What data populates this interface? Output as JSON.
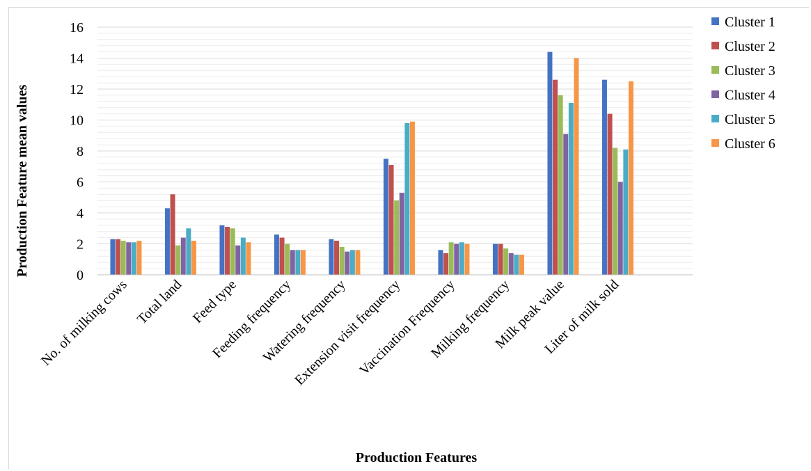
{
  "chart_data": {
    "type": "bar",
    "title": "",
    "xlabel": "Production Features",
    "ylabel": "Production Feature mean values",
    "ylim": [
      0,
      16
    ],
    "yticks": [
      0,
      2,
      4,
      6,
      8,
      10,
      12,
      14,
      16
    ],
    "grid": true,
    "legend_position": "right",
    "categories": [
      "No. of milking cows",
      "Total land",
      "Feed type",
      "Feeding frequency",
      "Watering frequency",
      "Extension visit frequency",
      "Vaccination Frequency",
      "Milking frequency",
      "Milk peak value",
      "Liter of milk sold"
    ],
    "series": [
      {
        "name": "Cluster 1",
        "color": "#4472C4",
        "values": [
          2.3,
          4.3,
          3.2,
          2.6,
          2.3,
          7.5,
          1.6,
          2.0,
          14.4,
          12.6
        ]
      },
      {
        "name": "Cluster 2",
        "color": "#C0504D",
        "values": [
          2.3,
          5.2,
          3.1,
          2.4,
          2.2,
          7.1,
          1.4,
          2.0,
          12.6,
          10.4
        ]
      },
      {
        "name": "Cluster 3",
        "color": "#9BBB59",
        "values": [
          2.2,
          1.9,
          3.0,
          2.0,
          1.8,
          4.8,
          2.1,
          1.7,
          11.6,
          8.2
        ]
      },
      {
        "name": "Cluster 4",
        "color": "#8064A2",
        "values": [
          2.1,
          2.4,
          1.9,
          1.6,
          1.5,
          5.3,
          2.0,
          1.4,
          9.1,
          6.0
        ]
      },
      {
        "name": "Cluster 5",
        "color": "#4BACC6",
        "values": [
          2.1,
          3.0,
          2.4,
          1.6,
          1.6,
          9.8,
          2.1,
          1.3,
          11.1,
          8.1
        ]
      },
      {
        "name": "Cluster 6",
        "color": "#F79646",
        "values": [
          2.2,
          2.2,
          2.1,
          1.6,
          1.6,
          9.9,
          2.0,
          1.3,
          14.0,
          12.5
        ]
      }
    ]
  }
}
